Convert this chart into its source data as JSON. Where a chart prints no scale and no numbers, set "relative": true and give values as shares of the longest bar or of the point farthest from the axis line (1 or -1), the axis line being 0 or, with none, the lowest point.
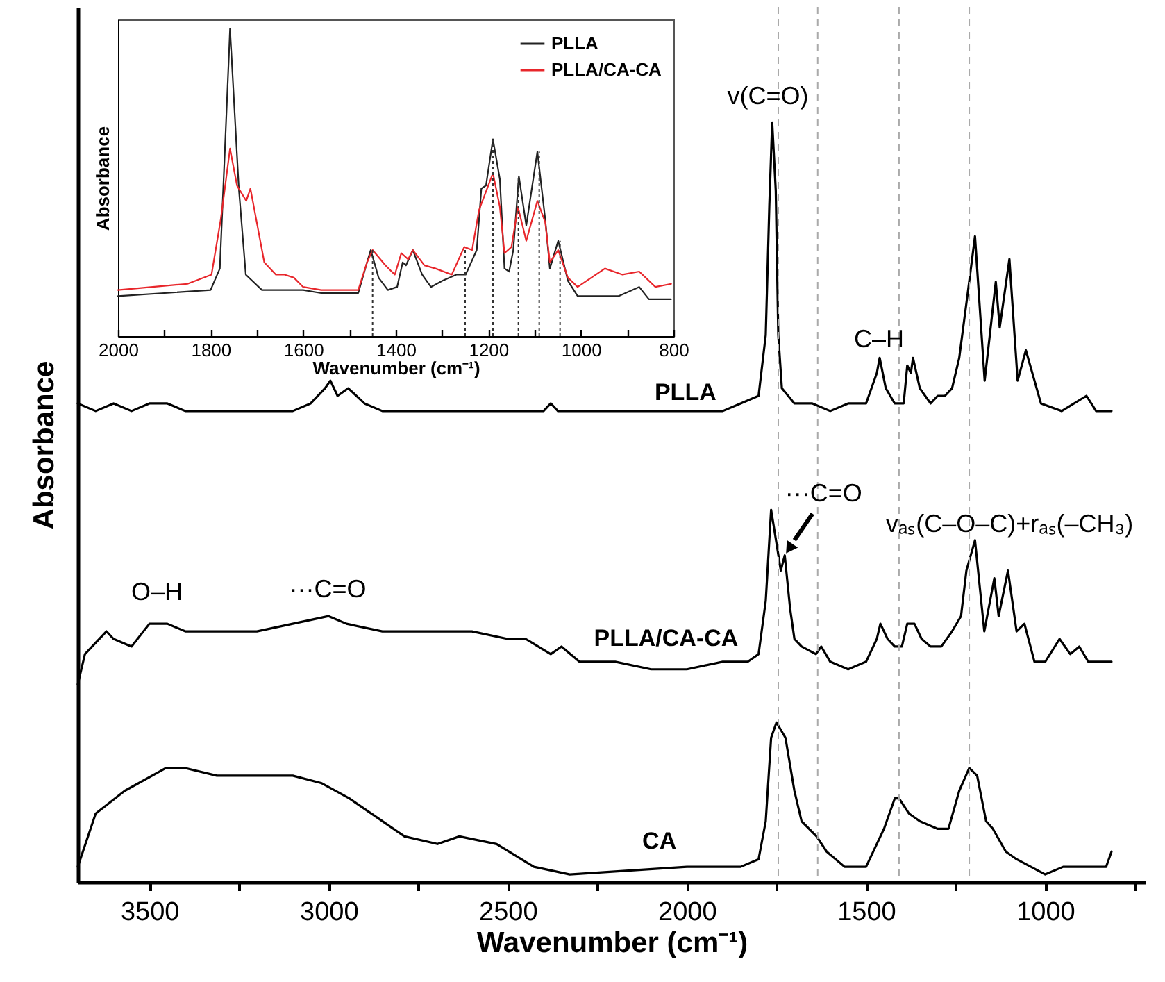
{
  "chart_data": [
    {
      "type": "line",
      "xlabel": "Wavenumber (cm⁻¹)",
      "ylabel": "Absorbance",
      "relative": true,
      "xlim": [
        3700,
        720
      ],
      "xticks": [
        3500,
        3000,
        2500,
        2000,
        1500,
        1000,
        {
          "value": 3250,
          "label": null
        },
        {
          "value": 2750,
          "label": null
        },
        {
          "value": 2250,
          "label": null
        },
        {
          "value": 1750,
          "label": null
        },
        {
          "value": 1250,
          "label": null
        },
        {
          "value": 750,
          "label": null
        }
      ],
      "series": [
        {
          "name": "PLLA",
          "color": "#000000",
          "x": [
            3700,
            3650,
            3600,
            3550,
            3500,
            3450,
            3400,
            3350,
            3300,
            3250,
            3200,
            3150,
            3100,
            3050,
            3010,
            2995,
            2975,
            2945,
            2900,
            2850,
            2800,
            2700,
            2600,
            2500,
            2400,
            2380,
            2360,
            2300,
            2200,
            2100,
            2000,
            1900,
            1850,
            1800,
            1780,
            1770,
            1762,
            1752,
            1745,
            1735,
            1700,
            1650,
            1600,
            1550,
            1500,
            1470,
            1462,
            1445,
            1420,
            1395,
            1385,
            1375,
            1369,
            1350,
            1320,
            1300,
            1280,
            1260,
            1240,
            1215,
            1196,
            1169,
            1138,
            1127,
            1100,
            1077,
            1054,
            1012,
            954,
            885,
            858,
            815
          ],
          "values": [
            0.63,
            0.62,
            0.63,
            0.62,
            0.63,
            0.63,
            0.62,
            0.62,
            0.62,
            0.62,
            0.62,
            0.62,
            0.62,
            0.63,
            0.65,
            0.66,
            0.64,
            0.65,
            0.63,
            0.62,
            0.62,
            0.62,
            0.62,
            0.62,
            0.62,
            0.63,
            0.62,
            0.62,
            0.62,
            0.62,
            0.62,
            0.62,
            0.63,
            0.64,
            0.72,
            0.89,
            1.0,
            0.91,
            0.72,
            0.65,
            0.63,
            0.63,
            0.62,
            0.63,
            0.63,
            0.67,
            0.69,
            0.65,
            0.63,
            0.63,
            0.68,
            0.67,
            0.69,
            0.65,
            0.63,
            0.64,
            0.64,
            0.65,
            0.69,
            0.78,
            0.85,
            0.66,
            0.79,
            0.73,
            0.82,
            0.66,
            0.7,
            0.63,
            0.62,
            0.64,
            0.62,
            0.62
          ]
        },
        {
          "name": "PLLA/CA-CA",
          "color": "#000000",
          "x": [
            3700,
            3680,
            3620,
            3600,
            3550,
            3500,
            3450,
            3400,
            3300,
            3200,
            3100,
            3000,
            2950,
            2850,
            2700,
            2600,
            2500,
            2450,
            2380,
            2350,
            2300,
            2200,
            2100,
            2000,
            1900,
            1830,
            1800,
            1780,
            1765,
            1748,
            1738,
            1727,
            1712,
            1700,
            1680,
            1640,
            1625,
            1600,
            1550,
            1500,
            1470,
            1460,
            1440,
            1420,
            1400,
            1385,
            1365,
            1345,
            1320,
            1290,
            1260,
            1235,
            1220,
            1196,
            1170,
            1142,
            1130,
            1104,
            1080,
            1058,
            1030,
            1000,
            960,
            930,
            905,
            880,
            840,
            815
          ],
          "values": [
            0.26,
            0.3,
            0.33,
            0.32,
            0.31,
            0.34,
            0.34,
            0.33,
            0.33,
            0.33,
            0.34,
            0.35,
            0.34,
            0.33,
            0.33,
            0.33,
            0.32,
            0.32,
            0.3,
            0.31,
            0.29,
            0.29,
            0.28,
            0.28,
            0.29,
            0.29,
            0.3,
            0.37,
            0.49,
            0.44,
            0.41,
            0.43,
            0.36,
            0.32,
            0.31,
            0.3,
            0.31,
            0.29,
            0.28,
            0.29,
            0.32,
            0.34,
            0.32,
            0.31,
            0.31,
            0.34,
            0.34,
            0.32,
            0.31,
            0.31,
            0.33,
            0.35,
            0.41,
            0.45,
            0.33,
            0.4,
            0.35,
            0.41,
            0.33,
            0.34,
            0.29,
            0.29,
            0.32,
            0.3,
            0.31,
            0.29,
            0.29,
            0.29
          ]
        },
        {
          "name": "CA",
          "color": "#000000",
          "x": [
            3700,
            3650,
            3569,
            3454,
            3400,
            3312,
            3200,
            3100,
            3019,
            2942,
            2788,
            2696,
            2635,
            2531,
            2427,
            2327,
            2000,
            1850,
            1800,
            1780,
            1765,
            1750,
            1725,
            1700,
            1680,
            1638,
            1610,
            1560,
            1500,
            1450,
            1420,
            1408,
            1380,
            1350,
            1300,
            1270,
            1240,
            1212,
            1190,
            1165,
            1146,
            1110,
            1080,
            1040,
            1000,
            950,
            900,
            870,
            830,
            815
          ],
          "values": [
            0.02,
            0.09,
            0.12,
            0.15,
            0.15,
            0.14,
            0.14,
            0.14,
            0.13,
            0.11,
            0.06,
            0.05,
            0.06,
            0.05,
            0.02,
            0.01,
            0.02,
            0.02,
            0.03,
            0.08,
            0.19,
            0.21,
            0.19,
            0.12,
            0.08,
            0.06,
            0.04,
            0.02,
            0.02,
            0.07,
            0.11,
            0.11,
            0.09,
            0.08,
            0.07,
            0.07,
            0.12,
            0.15,
            0.14,
            0.08,
            0.07,
            0.04,
            0.03,
            0.02,
            0.01,
            0.02,
            0.02,
            0.02,
            0.02,
            0.04
          ]
        }
      ],
      "annotations": [
        "v(C=O)",
        "C–H",
        "O–H",
        "···C=O",
        {
          "text": "···C=O",
          "x": 1727,
          "y": 0.43
        },
        "vₐₛ(C–O–C)+rₐₛ(–CH₃)"
      ],
      "ref_lines": [
        {
          "axis": "x",
          "value": 1745,
          "color": "#aaaaaa",
          "line_style": "dashed"
        },
        {
          "axis": "x",
          "value": 1635,
          "color": "#aaaaaa",
          "line_style": "dashed"
        },
        {
          "axis": "x",
          "value": 1408,
          "color": "#aaaaaa",
          "line_style": "dashed"
        },
        {
          "axis": "x",
          "value": 1212,
          "color": "#aaaaaa",
          "line_style": "dashed"
        }
      ]
    },
    {
      "type": "line",
      "xlabel": "Wavenumber (cm⁻¹)",
      "ylabel": "Absorbance",
      "relative": true,
      "legend": "top right",
      "xlim": [
        2000,
        800
      ],
      "xticks": [
        2000,
        1800,
        1600,
        1400,
        1200,
        1000,
        800,
        {
          "value": 1900,
          "label": null
        },
        {
          "value": 1700,
          "label": null
        },
        {
          "value": 1500,
          "label": null
        },
        {
          "value": 1300,
          "label": null
        },
        {
          "value": 1100,
          "label": null
        },
        {
          "value": 900,
          "label": null
        }
      ],
      "series": [
        {
          "name": "PLLA",
          "color": "#222222",
          "x": [
            2000,
            1800,
            1780,
            1758,
            1739,
            1724,
            1689,
            1600,
            1561,
            1481,
            1462,
            1454,
            1437,
            1417,
            1397,
            1385,
            1378,
            1363,
            1343,
            1324,
            1299,
            1269,
            1249,
            1225,
            1215,
            1205,
            1190,
            1175,
            1165,
            1155,
            1146,
            1134,
            1118,
            1094,
            1077,
            1067,
            1049,
            1028,
            1007,
            919,
            874,
            853,
            805
          ],
          "values": [
            0.13,
            0.15,
            0.22,
            1.0,
            0.48,
            0.2,
            0.15,
            0.15,
            0.14,
            0.14,
            0.24,
            0.28,
            0.19,
            0.15,
            0.16,
            0.24,
            0.23,
            0.28,
            0.2,
            0.16,
            0.18,
            0.2,
            0.2,
            0.28,
            0.48,
            0.49,
            0.64,
            0.51,
            0.22,
            0.21,
            0.28,
            0.52,
            0.36,
            0.6,
            0.38,
            0.22,
            0.31,
            0.18,
            0.13,
            0.13,
            0.16,
            0.12,
            0.12
          ]
        },
        {
          "name": "PLLA/CA-CA",
          "color": "#e8262b",
          "x": [
            2000,
            1850,
            1798,
            1778,
            1758,
            1743,
            1723,
            1714,
            1699,
            1684,
            1659,
            1640,
            1620,
            1600,
            1561,
            1481,
            1462,
            1450,
            1422,
            1402,
            1388,
            1373,
            1363,
            1338,
            1314,
            1279,
            1252,
            1235,
            1220,
            1190,
            1175,
            1165,
            1150,
            1136,
            1118,
            1094,
            1077,
            1067,
            1049,
            1028,
            1007,
            948,
            910,
            874,
            839,
            805
          ],
          "values": [
            0.15,
            0.17,
            0.2,
            0.38,
            0.61,
            0.49,
            0.44,
            0.48,
            0.36,
            0.24,
            0.2,
            0.2,
            0.19,
            0.16,
            0.15,
            0.15,
            0.24,
            0.28,
            0.23,
            0.2,
            0.27,
            0.25,
            0.28,
            0.23,
            0.22,
            0.2,
            0.29,
            0.28,
            0.41,
            0.53,
            0.42,
            0.27,
            0.29,
            0.42,
            0.31,
            0.44,
            0.37,
            0.24,
            0.28,
            0.19,
            0.16,
            0.22,
            0.2,
            0.21,
            0.16,
            0.17
          ]
        }
      ],
      "ref_lines": [
        {
          "axis": "x",
          "value": 1450,
          "color": "#333333",
          "line_style": "dotted"
        },
        {
          "axis": "x",
          "value": 1250,
          "color": "#333333",
          "line_style": "dotted"
        },
        {
          "axis": "x",
          "value": 1190,
          "color": "#333333",
          "line_style": "dotted"
        },
        {
          "axis": "x",
          "value": 1135,
          "color": "#333333",
          "line_style": "dotted"
        },
        {
          "axis": "x",
          "value": 1090,
          "color": "#333333",
          "line_style": "dotted"
        },
        {
          "axis": "x",
          "value": 1045,
          "color": "#333333",
          "line_style": "dotted"
        }
      ]
    }
  ]
}
